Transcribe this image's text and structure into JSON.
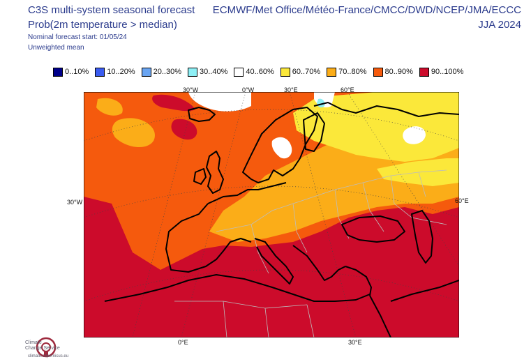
{
  "header": {
    "title_line1": "C3S multi-system seasonal forecast",
    "title_line2": "Prob(2m temperature > median)",
    "start_line": "Nominal forecast start: 01/05/24",
    "mean_line": "Unweighted mean",
    "centres": "ECMWF/Met Office/Météo-France/CMCC/DWD/NCEP/JMA/ECCC",
    "season": "JJA 2024"
  },
  "legend": [
    {
      "label": "0..10%",
      "color": "#00008b"
    },
    {
      "label": "10..20%",
      "color": "#3a5cf0"
    },
    {
      "label": "20..30%",
      "color": "#6aa5f2"
    },
    {
      "label": "30..40%",
      "color": "#8ef0f6"
    },
    {
      "label": "40..60%",
      "color": "#ffffff"
    },
    {
      "label": "60..70%",
      "color": "#fbe83a"
    },
    {
      "label": "70..80%",
      "color": "#fbad18"
    },
    {
      "label": "80..90%",
      "color": "#f55a0d"
    },
    {
      "label": "90..100%",
      "color": "#cc0b2b"
    }
  ],
  "map_axes": {
    "top_labels": [
      "30°W",
      "0°W",
      "30°E",
      "60°E"
    ],
    "left_label": "30°W",
    "right_label": "60°E",
    "bottom_labels": [
      "0°E",
      "30°E"
    ]
  },
  "logo": {
    "name_line1": "Climate",
    "name_line2": "Change Service",
    "url": "climate.copernicus.eu",
    "icon": "copernicus-climate-logo"
  },
  "colors": {
    "title": "#2a3a8c",
    "coast": "#000000",
    "border": "#bdbdbd"
  }
}
